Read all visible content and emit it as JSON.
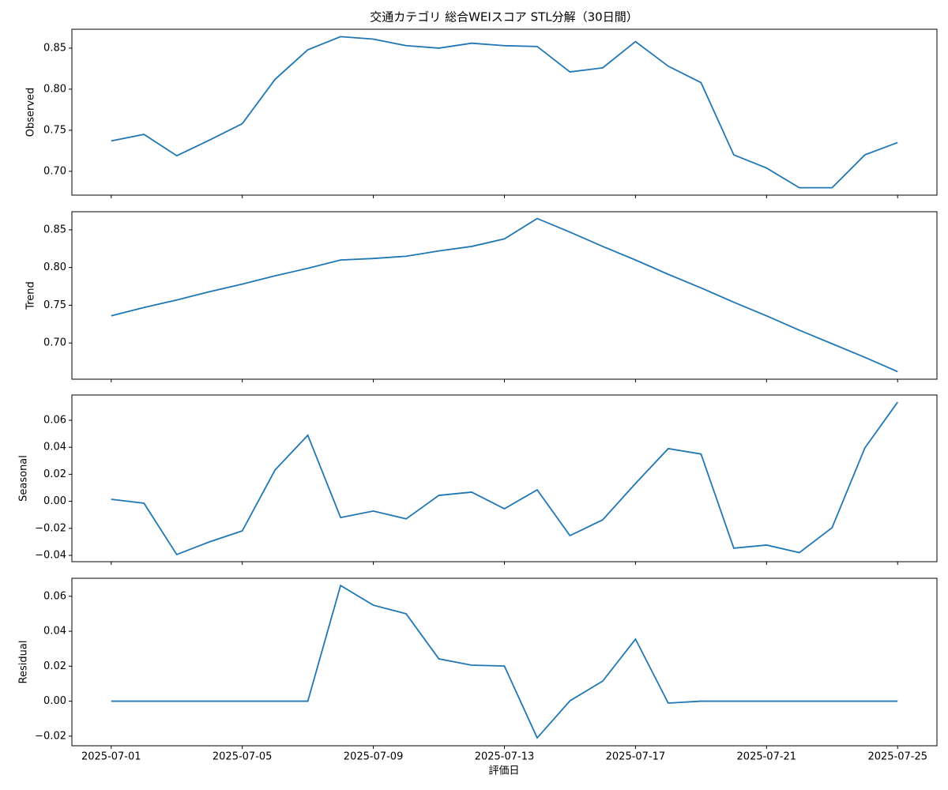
{
  "chart_data": {
    "type": "line",
    "title": "交通カテゴリ 総合WEIスコア STL分解（30日間）",
    "xlabel": "評価日",
    "color": "#1f77b4",
    "x": [
      "2025-07-01",
      "2025-07-02",
      "2025-07-03",
      "2025-07-04",
      "2025-07-05",
      "2025-07-06",
      "2025-07-07",
      "2025-07-08",
      "2025-07-09",
      "2025-07-10",
      "2025-07-11",
      "2025-07-12",
      "2025-07-13",
      "2025-07-14",
      "2025-07-15",
      "2025-07-16",
      "2025-07-17",
      "2025-07-18",
      "2025-07-19",
      "2025-07-20",
      "2025-07-21",
      "2025-07-22",
      "2025-07-23",
      "2025-07-24",
      "2025-07-25"
    ],
    "xticks": [
      "2025-07-01",
      "2025-07-05",
      "2025-07-09",
      "2025-07-13",
      "2025-07-17",
      "2025-07-21",
      "2025-07-25"
    ],
    "panels": [
      {
        "ylabel": "Observed",
        "values": [
          0.737,
          0.745,
          0.719,
          0.738,
          0.758,
          0.812,
          0.848,
          0.864,
          0.861,
          0.853,
          0.85,
          0.856,
          0.853,
          0.852,
          0.821,
          0.826,
          0.858,
          0.828,
          0.808,
          0.72,
          0.704,
          0.68,
          0.68,
          0.72,
          0.735
        ],
        "ylim": [
          0.671,
          0.873
        ],
        "yticks": [
          {
            "value": 0.7,
            "label": "0.70"
          },
          0.75,
          {
            "value": 0.8,
            "label": "0.80"
          },
          0.85
        ]
      },
      {
        "ylabel": "Trend",
        "values": [
          0.736,
          0.747,
          0.757,
          0.768,
          0.778,
          0.789,
          0.799,
          0.81,
          0.812,
          0.815,
          0.822,
          0.828,
          0.838,
          0.865,
          0.847,
          0.828,
          0.81,
          0.791,
          0.773,
          0.754,
          0.736,
          0.717,
          0.699,
          0.681,
          0.662
        ],
        "ylim": [
          0.652,
          0.874
        ],
        "yticks": [
          {
            "value": 0.7,
            "label": "0.70"
          },
          0.75,
          {
            "value": 0.8,
            "label": "0.80"
          },
          0.85
        ]
      },
      {
        "ylabel": "Seasonal",
        "values": [
          0.0015,
          -0.0014,
          -0.0394,
          -0.03,
          -0.0219,
          0.0232,
          0.0489,
          -0.012,
          -0.0072,
          -0.013,
          0.0044,
          0.0068,
          -0.0055,
          0.0085,
          -0.0254,
          -0.0137,
          0.0132,
          0.039,
          0.035,
          -0.0347,
          -0.0324,
          -0.038,
          -0.0195,
          0.0395,
          0.0734
        ],
        "ylim": [
          -0.0447,
          0.0787
        ],
        "yticks": [
          {
            "value": -0.04,
            "label": "−0.04"
          },
          {
            "value": -0.02,
            "label": "−0.02"
          },
          {
            "value": 0,
            "label": "0.00"
          },
          0.02,
          0.04,
          0.06
        ]
      },
      {
        "ylabel": "Residual",
        "values": [
          0,
          0,
          0,
          0,
          0,
          0,
          0,
          0.0662,
          0.0549,
          0.05,
          0.0242,
          0.0206,
          0.0201,
          -0.021,
          0.0002,
          0.0115,
          0.0355,
          -0.0011,
          0,
          0,
          0,
          0,
          0,
          0,
          0
        ],
        "ylim": [
          -0.0255,
          0.0703
        ],
        "yticks": [
          {
            "value": -0.02,
            "label": "−0.02"
          },
          {
            "value": 0,
            "label": "0.00"
          },
          0.02,
          0.04,
          0.06
        ]
      }
    ]
  }
}
